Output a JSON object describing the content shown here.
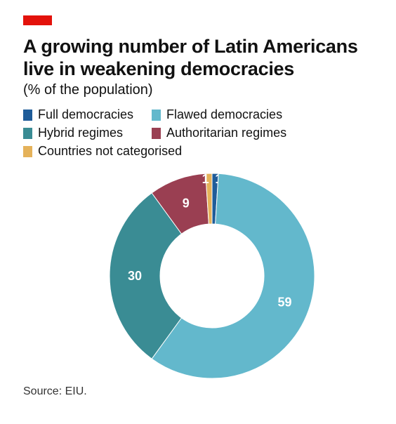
{
  "header": {
    "title": "A growing number of Latin Americans live in weakening democracies",
    "subtitle": "(% of the population)"
  },
  "source": "Source: EIU.",
  "chart_data": {
    "type": "pie",
    "title": "A growing number of Latin Americans live in weakening democracies",
    "subtitle": "(% of the population)",
    "legend_placement": "top-left",
    "donut": true,
    "slices": [
      {
        "name": "Full democracies",
        "value": 1,
        "label": "1",
        "color": "#1f5c99"
      },
      {
        "name": "Flawed democracies",
        "value": 59,
        "label": "59",
        "color": "#63b8cc"
      },
      {
        "name": "Hybrid regimes",
        "value": 30,
        "label": "30",
        "color": "#3a8c94"
      },
      {
        "name": "Authoritarian regimes",
        "value": 9,
        "label": "9",
        "color": "#9a3f52"
      },
      {
        "name": "Countries not categorised",
        "value": 1,
        "label": "1",
        "color": "#e5b25a"
      }
    ],
    "legend": [
      "Full democracies",
      "Flawed democracies",
      "Hybrid regimes",
      "Authoritarian regimes",
      "Countries not categorised"
    ]
  }
}
